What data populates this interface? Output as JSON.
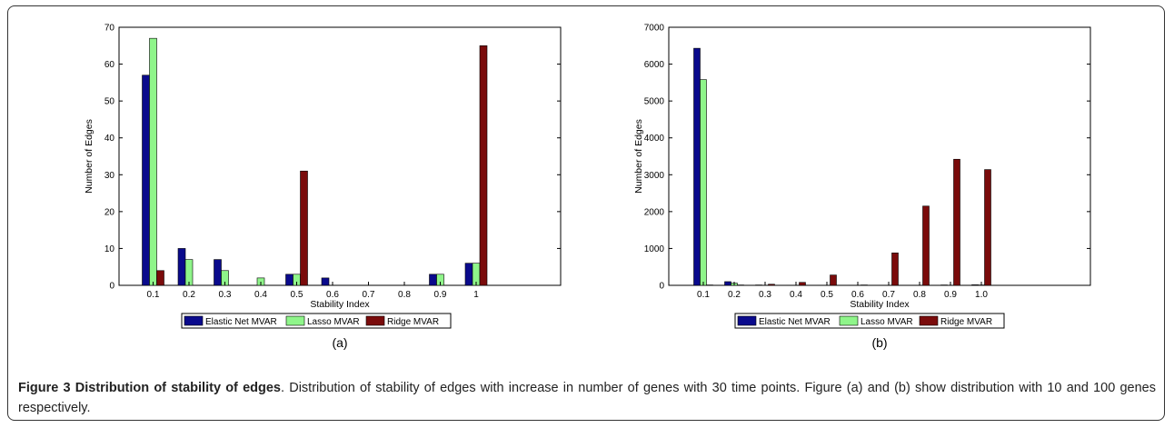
{
  "figure": {
    "caption_title": "Figure 3 Distribution of stability of edges",
    "caption_text": ". Distribution of stability of edges with increase in number of genes with 30 time points. Figure (a) and (b) show distribution with 10 and 100 genes respectively."
  },
  "colors": {
    "elastic_net": "#0a0a8c",
    "lasso": "#8ff58a",
    "ridge": "#7a0b0b"
  },
  "chart_data": [
    {
      "type": "bar",
      "panel_label": "(a)",
      "xlabel": "Stability Index",
      "ylabel": "Number of Edges",
      "categories": [
        "0.1",
        "0.2",
        "0.3",
        "0.4",
        "0.5",
        "0.6",
        "0.7",
        "0.8",
        "0.9",
        "1"
      ],
      "ylim": [
        0,
        70
      ],
      "yticks": [
        0,
        10,
        20,
        30,
        40,
        50,
        60,
        70
      ],
      "legend_position": "bottom",
      "series": [
        {
          "name": "Elastic Net MVAR",
          "values": [
            57,
            10,
            7,
            0,
            3,
            2,
            0,
            0,
            3,
            6
          ]
        },
        {
          "name": "Lasso MVAR",
          "values": [
            67,
            7,
            4,
            2,
            3,
            0,
            0,
            0,
            3,
            6
          ]
        },
        {
          "name": "Ridge MVAR",
          "values": [
            4,
            0,
            0,
            0,
            31,
            0,
            0,
            0,
            0,
            65
          ]
        }
      ]
    },
    {
      "type": "bar",
      "panel_label": "(b)",
      "xlabel": "Stability Index",
      "ylabel": "Number of Edges",
      "categories": [
        "0.1",
        "0.2",
        "0.3",
        "0.4",
        "0.5",
        "0.6",
        "0.7",
        "0.8",
        "0.9",
        "1.0"
      ],
      "ylim": [
        0,
        7000
      ],
      "yticks": [
        0,
        1000,
        2000,
        3000,
        4000,
        5000,
        6000,
        7000
      ],
      "legend_position": "bottom",
      "series": [
        {
          "name": "Elastic Net MVAR",
          "values": [
            6430,
            100,
            10,
            5,
            5,
            5,
            5,
            5,
            10,
            15
          ]
        },
        {
          "name": "Lasso MVAR",
          "values": [
            5580,
            60,
            5,
            5,
            5,
            5,
            5,
            5,
            5,
            10
          ]
        },
        {
          "name": "Ridge MVAR",
          "values": [
            10,
            10,
            30,
            80,
            280,
            10,
            880,
            2150,
            3420,
            3140
          ]
        }
      ]
    }
  ]
}
